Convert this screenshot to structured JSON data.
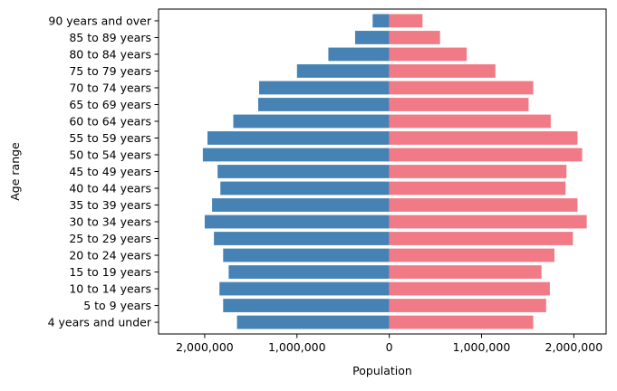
{
  "chart_data": {
    "type": "bar",
    "orientation": "horizontal",
    "style": "population-pyramid",
    "title": "",
    "xlabel": "Population",
    "ylabel": "Age range",
    "xlim": [
      -2500000,
      2350000
    ],
    "xticks": [
      -2000000,
      -1000000,
      0,
      1000000,
      2000000
    ],
    "xtick_labels": [
      "2,000,000",
      "1,000,000",
      "0",
      "1,000,000",
      "2,000,000"
    ],
    "grid": false,
    "legend": "none",
    "categories": [
      "4 years and under",
      "5 to 9 years",
      "10 to 14 years",
      "15 to 19 years",
      "20 to 24 years",
      "25 to 29 years",
      "30 to 34 years",
      "35 to 39 years",
      "40 to 44 years",
      "45 to 49 years",
      "50 to 54 years",
      "55 to 59 years",
      "60 to 64 years",
      "65 to 69 years",
      "70 to 74 years",
      "75 to 79 years",
      "80 to 84 years",
      "85 to 89 years",
      "90 years and over"
    ],
    "series": [
      {
        "color": "#4682b4",
        "side": "left",
        "values": [
          1650000,
          1800000,
          1840000,
          1740000,
          1800000,
          1900000,
          2000000,
          1920000,
          1830000,
          1860000,
          2020000,
          1970000,
          1690000,
          1420000,
          1410000,
          1000000,
          660000,
          370000,
          180000
        ]
      },
      {
        "color": "#f07b86",
        "side": "right",
        "values": [
          1560000,
          1700000,
          1740000,
          1650000,
          1790000,
          1990000,
          2140000,
          2040000,
          1910000,
          1920000,
          2090000,
          2040000,
          1750000,
          1510000,
          1560000,
          1150000,
          840000,
          550000,
          360000
        ]
      }
    ]
  }
}
